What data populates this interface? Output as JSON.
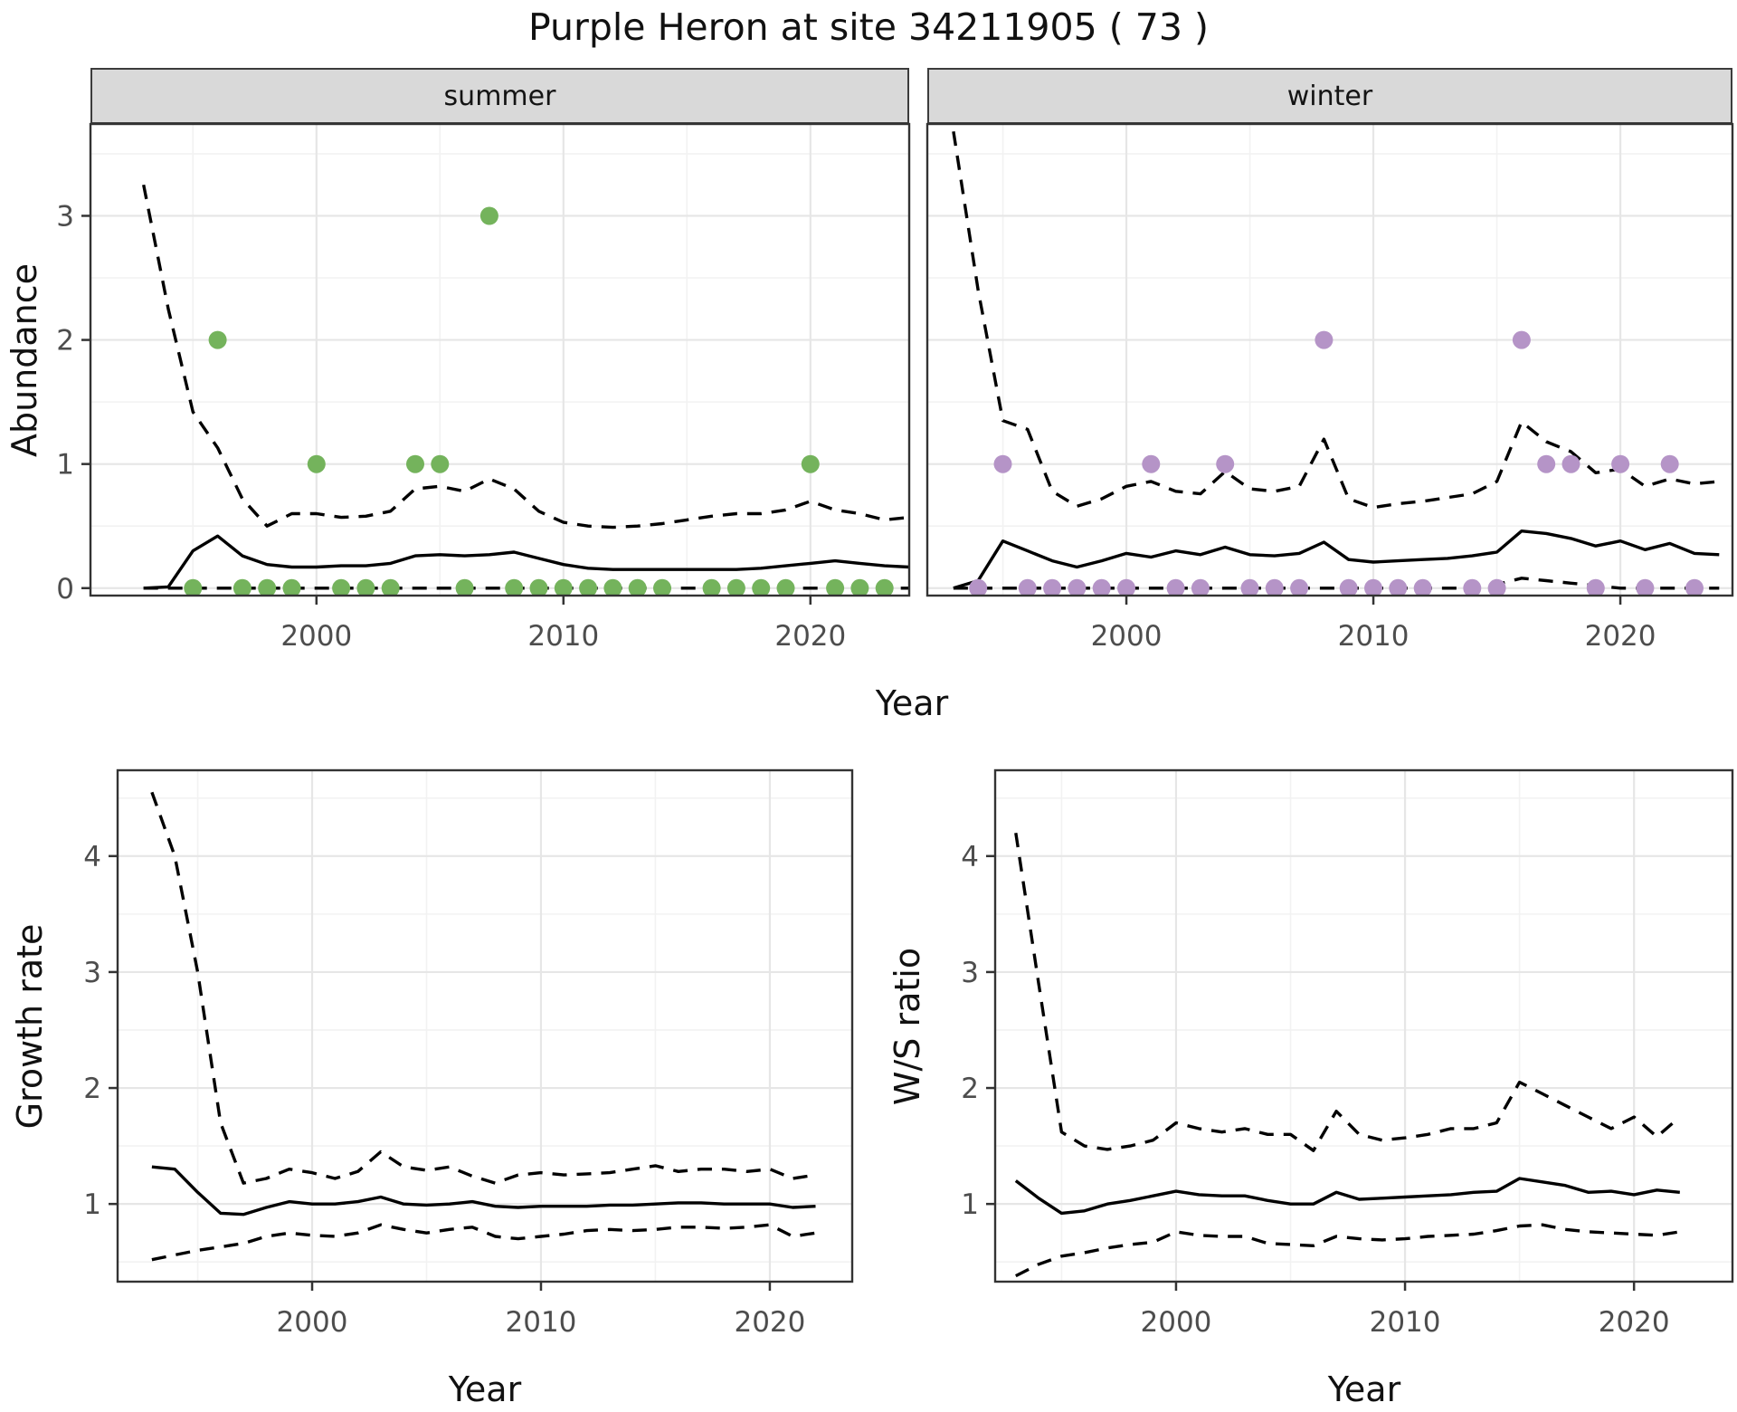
{
  "title": "Purple Heron at site 34211905 ( 73 )",
  "colors": {
    "summer_points": "#74b35c",
    "winter_points": "#b594c7",
    "line": "#000000",
    "strip_bg": "#d9d9d9",
    "grid_major": "#e6e6e6",
    "grid_minor": "#f2f2f2",
    "tick_label": "#4d4d4d",
    "panel_border": "#333333",
    "axis_tick": "#333333"
  },
  "chart_data": [
    {
      "type": "line",
      "facet": "summer",
      "xlabel": "Year",
      "ylabel": "Abundance",
      "x_ticks": [
        2000,
        2010,
        2020
      ],
      "x_minor": [
        1995,
        2005,
        2015
      ],
      "y_ticks": [
        0,
        1,
        2,
        3
      ],
      "y_minor": [
        0.5,
        1.5,
        2.5,
        3.5
      ],
      "xlim": [
        1990.85,
        2024.0
      ],
      "ylim": [
        -0.06,
        3.74
      ],
      "legend_position": "none",
      "grid": true,
      "x": [
        1993,
        1994,
        1995,
        1996,
        1997,
        1998,
        1999,
        2000,
        2001,
        2002,
        2003,
        2004,
        2005,
        2006,
        2007,
        2008,
        2009,
        2010,
        2011,
        2012,
        2013,
        2014,
        2015,
        2016,
        2017,
        2018,
        2019,
        2020,
        2021,
        2022,
        2023,
        2024
      ],
      "series": [
        {
          "name": "median",
          "style": "solid",
          "values": [
            0.0,
            0.01,
            0.3,
            0.42,
            0.26,
            0.19,
            0.17,
            0.17,
            0.18,
            0.18,
            0.2,
            0.26,
            0.27,
            0.26,
            0.27,
            0.29,
            0.24,
            0.19,
            0.16,
            0.15,
            0.15,
            0.15,
            0.15,
            0.15,
            0.15,
            0.16,
            0.18,
            0.2,
            0.22,
            0.2,
            0.18,
            0.17
          ]
        },
        {
          "name": "upper 95% CI",
          "style": "dashed",
          "values": [
            3.25,
            2.25,
            1.42,
            1.13,
            0.72,
            0.5,
            0.6,
            0.6,
            0.57,
            0.58,
            0.62,
            0.8,
            0.82,
            0.78,
            0.88,
            0.8,
            0.62,
            0.53,
            0.5,
            0.49,
            0.5,
            0.52,
            0.55,
            0.58,
            0.6,
            0.6,
            0.63,
            0.7,
            0.63,
            0.6,
            0.55,
            0.57
          ]
        },
        {
          "name": "lower 95% CI",
          "style": "dashed",
          "values": [
            0,
            0,
            0,
            0,
            0,
            0,
            0,
            0,
            0,
            0,
            0,
            0,
            0,
            0,
            0,
            0,
            0,
            0,
            0,
            0,
            0,
            0,
            0,
            0,
            0,
            0,
            0,
            0,
            0,
            0,
            0,
            0
          ]
        }
      ],
      "points": {
        "color_key": "summer_points",
        "x": [
          1995,
          1996,
          1997,
          1998,
          1999,
          2000,
          2001,
          2002,
          2003,
          2004,
          2005,
          2006,
          2007,
          2008,
          2009,
          2010,
          2011,
          2012,
          2013,
          2014,
          2016,
          2017,
          2018,
          2019,
          2020,
          2021,
          2022,
          2023
        ],
        "y": [
          0,
          2,
          0,
          0,
          0,
          1,
          0,
          0,
          0,
          1,
          1,
          0,
          3,
          0,
          0,
          0,
          0,
          0,
          0,
          0,
          0,
          0,
          0,
          0,
          1,
          0,
          0,
          0
        ]
      }
    },
    {
      "type": "line",
      "facet": "winter",
      "xlabel": "Year",
      "ylabel": "Abundance",
      "x_ticks": [
        2000,
        2010,
        2020
      ],
      "x_minor": [
        1995,
        2005,
        2015
      ],
      "y_ticks": [
        0,
        1,
        2,
        3
      ],
      "y_minor": [
        0.5,
        1.5,
        2.5,
        3.5
      ],
      "xlim": [
        1991.94,
        2024.54
      ],
      "ylim": [
        -0.06,
        3.74
      ],
      "legend_position": "none",
      "grid": true,
      "x": [
        1993,
        1994,
        1995,
        1996,
        1997,
        1998,
        1999,
        2000,
        2001,
        2002,
        2003,
        2004,
        2005,
        2006,
        2007,
        2008,
        2009,
        2010,
        2011,
        2012,
        2013,
        2014,
        2015,
        2016,
        2017,
        2018,
        2019,
        2020,
        2021,
        2022,
        2023,
        2024
      ],
      "series": [
        {
          "name": "median",
          "style": "solid",
          "values": [
            0.0,
            0.06,
            0.38,
            0.3,
            0.22,
            0.17,
            0.22,
            0.28,
            0.25,
            0.3,
            0.27,
            0.33,
            0.27,
            0.26,
            0.28,
            0.37,
            0.23,
            0.21,
            0.22,
            0.23,
            0.24,
            0.26,
            0.29,
            0.46,
            0.44,
            0.4,
            0.34,
            0.38,
            0.31,
            0.36,
            0.28,
            0.27
          ]
        },
        {
          "name": "upper 95% CI",
          "style": "dashed",
          "values": [
            3.68,
            2.4,
            1.35,
            1.28,
            0.78,
            0.66,
            0.72,
            0.82,
            0.86,
            0.78,
            0.76,
            0.94,
            0.8,
            0.78,
            0.82,
            1.2,
            0.72,
            0.65,
            0.68,
            0.7,
            0.73,
            0.76,
            0.86,
            1.34,
            1.18,
            1.1,
            0.93,
            0.96,
            0.82,
            0.88,
            0.84,
            0.86
          ]
        },
        {
          "name": "lower 95% CI",
          "style": "dashed",
          "values": [
            0,
            0,
            0,
            0,
            0,
            0,
            0,
            0,
            0,
            0,
            0,
            0,
            0,
            0,
            0,
            0,
            0,
            0,
            0,
            0,
            0,
            0,
            0.03,
            0.08,
            0.06,
            0.04,
            0.02,
            0,
            0,
            0,
            0,
            0
          ]
        }
      ],
      "points": {
        "color_key": "winter_points",
        "x": [
          1994,
          1995,
          1996,
          1997,
          1998,
          1999,
          2000,
          2001,
          2002,
          2003,
          2004,
          2005,
          2006,
          2007,
          2008,
          2009,
          2010,
          2011,
          2012,
          2014,
          2015,
          2016,
          2017,
          2018,
          2019,
          2020,
          2021,
          2022,
          2023
        ],
        "y": [
          0,
          1,
          0,
          0,
          0,
          0,
          0,
          1,
          0,
          0,
          1,
          0,
          0,
          0,
          2,
          0,
          0,
          0,
          0,
          0,
          0,
          2,
          1,
          1,
          0,
          1,
          0,
          1,
          0
        ]
      }
    },
    {
      "type": "line",
      "facet": null,
      "xlabel": "Year",
      "ylabel": "Growth rate",
      "x_ticks": [
        2000,
        2010,
        2020
      ],
      "x_minor": [
        1995,
        2005,
        2015
      ],
      "y_ticks": [
        1,
        2,
        3,
        4
      ],
      "y_minor": [
        0.5,
        1.5,
        2.5,
        3.5,
        4.5
      ],
      "xlim": [
        1991.5,
        2023.6
      ],
      "ylim": [
        0.33,
        4.74
      ],
      "legend_position": "none",
      "grid": true,
      "x": [
        1993,
        1994,
        1995,
        1996,
        1997,
        1998,
        1999,
        2000,
        2001,
        2002,
        2003,
        2004,
        2005,
        2006,
        2007,
        2008,
        2009,
        2010,
        2011,
        2012,
        2013,
        2014,
        2015,
        2016,
        2017,
        2018,
        2019,
        2020,
        2021,
        2022
      ],
      "series": [
        {
          "name": "median",
          "style": "solid",
          "values": [
            1.32,
            1.3,
            1.1,
            0.92,
            0.91,
            0.97,
            1.02,
            1.0,
            1.0,
            1.02,
            1.06,
            1.0,
            0.99,
            1.0,
            1.02,
            0.98,
            0.97,
            0.98,
            0.98,
            0.98,
            0.99,
            0.99,
            1.0,
            1.01,
            1.01,
            1.0,
            1.0,
            1.0,
            0.97,
            0.98
          ]
        },
        {
          "name": "upper 95% CI",
          "style": "dashed",
          "values": [
            4.55,
            4.0,
            3.0,
            1.7,
            1.18,
            1.22,
            1.3,
            1.27,
            1.22,
            1.28,
            1.45,
            1.32,
            1.29,
            1.32,
            1.24,
            1.18,
            1.25,
            1.27,
            1.25,
            1.26,
            1.27,
            1.3,
            1.33,
            1.28,
            1.3,
            1.3,
            1.28,
            1.3,
            1.22,
            1.25
          ]
        },
        {
          "name": "lower 95% CI",
          "style": "dashed",
          "values": [
            0.52,
            0.56,
            0.6,
            0.63,
            0.66,
            0.72,
            0.75,
            0.73,
            0.72,
            0.75,
            0.82,
            0.78,
            0.75,
            0.78,
            0.8,
            0.72,
            0.7,
            0.72,
            0.74,
            0.77,
            0.78,
            0.77,
            0.78,
            0.8,
            0.8,
            0.79,
            0.8,
            0.82,
            0.72,
            0.75
          ]
        }
      ],
      "points": null
    },
    {
      "type": "line",
      "facet": null,
      "xlabel": "Year",
      "ylabel": "W/S ratio",
      "x_ticks": [
        2000,
        2010,
        2020
      ],
      "x_minor": [
        1995,
        2005,
        2015
      ],
      "y_ticks": [
        1,
        2,
        3,
        4
      ],
      "y_minor": [
        0.5,
        1.5,
        2.5,
        3.5,
        4.5
      ],
      "xlim": [
        1992.1,
        2024.3
      ],
      "ylim": [
        0.33,
        4.74
      ],
      "legend_position": "none",
      "grid": true,
      "x": [
        1993,
        1994,
        1995,
        1996,
        1997,
        1998,
        1999,
        2000,
        2001,
        2002,
        2003,
        2004,
        2005,
        2006,
        2007,
        2008,
        2009,
        2010,
        2011,
        2012,
        2013,
        2014,
        2015,
        2016,
        2017,
        2018,
        2019,
        2020,
        2021,
        2022
      ],
      "series": [
        {
          "name": "median",
          "style": "solid",
          "values": [
            1.2,
            1.05,
            0.92,
            0.94,
            1.0,
            1.03,
            1.07,
            1.11,
            1.08,
            1.07,
            1.07,
            1.03,
            1.0,
            1.0,
            1.1,
            1.04,
            1.05,
            1.06,
            1.07,
            1.08,
            1.1,
            1.11,
            1.22,
            1.19,
            1.16,
            1.1,
            1.11,
            1.08,
            1.12,
            1.1
          ]
        },
        {
          "name": "upper 95% CI",
          "style": "dashed",
          "values": [
            4.2,
            2.9,
            1.62,
            1.5,
            1.47,
            1.5,
            1.55,
            1.7,
            1.65,
            1.62,
            1.65,
            1.6,
            1.6,
            1.46,
            1.8,
            1.6,
            1.55,
            1.57,
            1.6,
            1.65,
            1.65,
            1.7,
            2.05,
            1.95,
            1.85,
            1.75,
            1.65,
            1.75,
            1.58,
            1.75
          ]
        },
        {
          "name": "lower 95% CI",
          "style": "dashed",
          "values": [
            0.38,
            0.48,
            0.55,
            0.58,
            0.62,
            0.65,
            0.67,
            0.76,
            0.73,
            0.72,
            0.72,
            0.66,
            0.65,
            0.64,
            0.72,
            0.7,
            0.69,
            0.7,
            0.72,
            0.73,
            0.74,
            0.77,
            0.81,
            0.82,
            0.78,
            0.76,
            0.75,
            0.74,
            0.73,
            0.76
          ]
        }
      ],
      "points": null
    }
  ]
}
